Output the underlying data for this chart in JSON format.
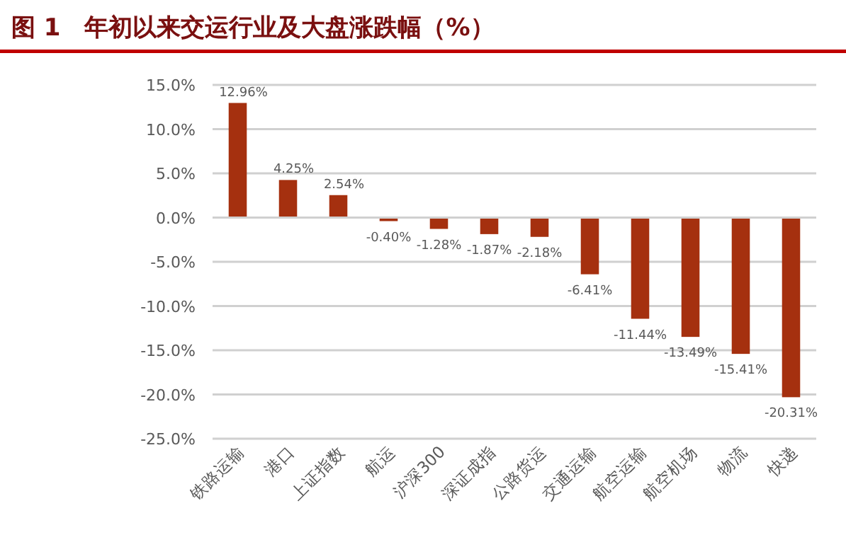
{
  "chart_data": {
    "type": "bar",
    "title": "图 1　年初以来交运行业及大盘涨跌幅（%）",
    "categories": [
      "铁路运输",
      "港口",
      "上证指数",
      "航运",
      "沪深300",
      "深证成指",
      "公路货运",
      "交通运输",
      "航空运输",
      "航空机场",
      "物流",
      "快递"
    ],
    "values": [
      12.96,
      4.25,
      2.54,
      -0.4,
      -1.28,
      -1.87,
      -2.18,
      -6.41,
      -11.44,
      -13.49,
      -15.41,
      -20.31
    ],
    "value_labels": [
      "12.96%",
      "4.25%",
      "2.54%",
      "-0.40%",
      "-1.28%",
      "-1.87%",
      "-2.18%",
      "-6.41%",
      "-11.44%",
      "-13.49%",
      "-15.41%",
      "-20.31%"
    ],
    "color": "#a5300f",
    "ylim": [
      -25,
      15
    ],
    "yticks": [
      {
        "value": -25,
        "label": "-25.0%"
      },
      {
        "value": -20,
        "label": "-20.0%"
      },
      {
        "value": -15,
        "label": "-15.0%"
      },
      {
        "value": -10,
        "label": "-10.0%"
      },
      {
        "value": -5,
        "label": "-5.0%"
      },
      {
        "value": 0,
        "label": "0.0%"
      },
      {
        "value": 5,
        "label": "5.0%"
      },
      {
        "value": 10,
        "label": "10.0%"
      },
      {
        "value": 15,
        "label": "15.0%"
      }
    ],
    "grid": "y"
  }
}
